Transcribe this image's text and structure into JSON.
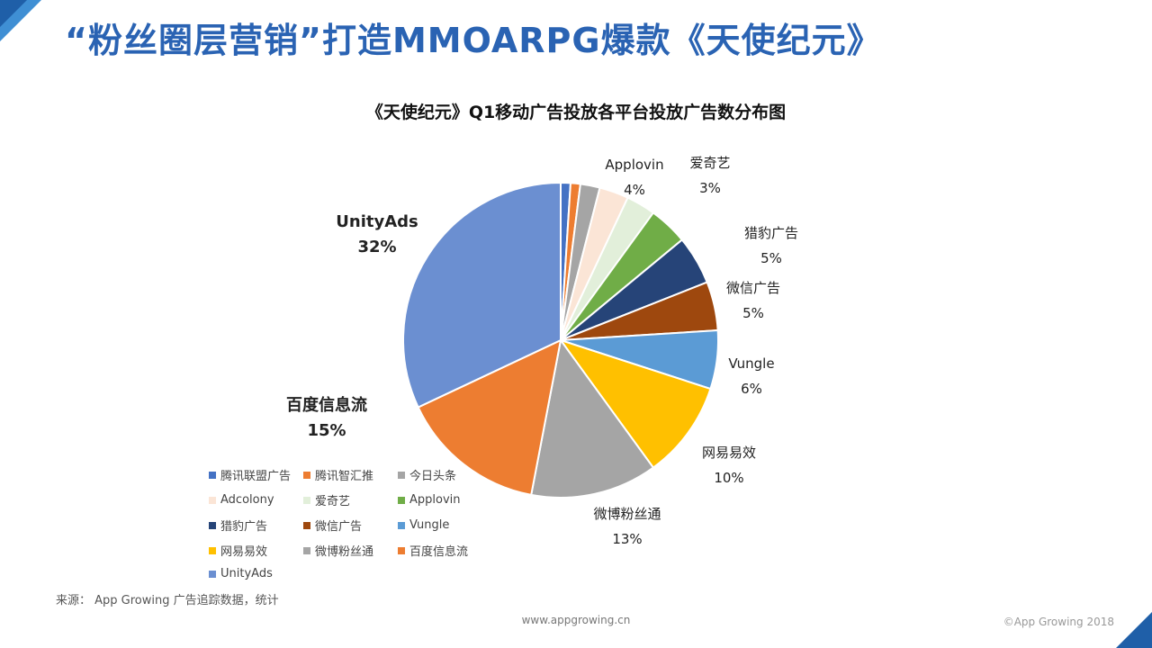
{
  "page": {
    "title": "“粉丝圈层营销”打造MMOARPG爆款《天使纪元》",
    "source": "来源： App Growing 广告追踪数据，统计",
    "site": "www.appgrowing.cn",
    "copyright": "©App Growing 2018"
  },
  "chart_data": {
    "type": "pie",
    "title": "《天使纪元》Q1移动广告投放各平台投放广告数分布图",
    "unit": "%",
    "legend_position": "bottom-left",
    "slices": [
      {
        "name": "腾讯联盟广告",
        "value": 1,
        "color": "#4472c4",
        "label": ""
      },
      {
        "name": "腾讯智汇推",
        "value": 1,
        "color": "#ed7d31",
        "label": ""
      },
      {
        "name": "今日头条",
        "value": 2,
        "color": "#a5a5a5",
        "label": ""
      },
      {
        "name": "Adcolony",
        "value": 3,
        "color": "#fbe5d6",
        "label": ""
      },
      {
        "name": "爱奇艺",
        "value": 3,
        "color": "#e2efda",
        "label": "3%"
      },
      {
        "name": "Applovin",
        "value": 4,
        "color": "#70ad47",
        "label": "4%"
      },
      {
        "name": "猎豹广告",
        "value": 5,
        "color": "#264478",
        "label": "5%"
      },
      {
        "name": "微信广告",
        "value": 5,
        "color": "#9e480e",
        "label": "5%"
      },
      {
        "name": "Vungle",
        "value": 6,
        "color": "#5b9bd5",
        "label": "6%"
      },
      {
        "name": "网易易效",
        "value": 10,
        "color": "#ffc000",
        "label": "10%"
      },
      {
        "name": "微博粉丝通",
        "value": 13,
        "color": "#a5a5a5",
        "label": "13%"
      },
      {
        "name": "百度信息流",
        "value": 15,
        "color": "#ed7d31",
        "label": "15%"
      },
      {
        "name": "UnityAds",
        "value": 32,
        "color": "#6b8fd1",
        "label": "32%"
      }
    ]
  }
}
